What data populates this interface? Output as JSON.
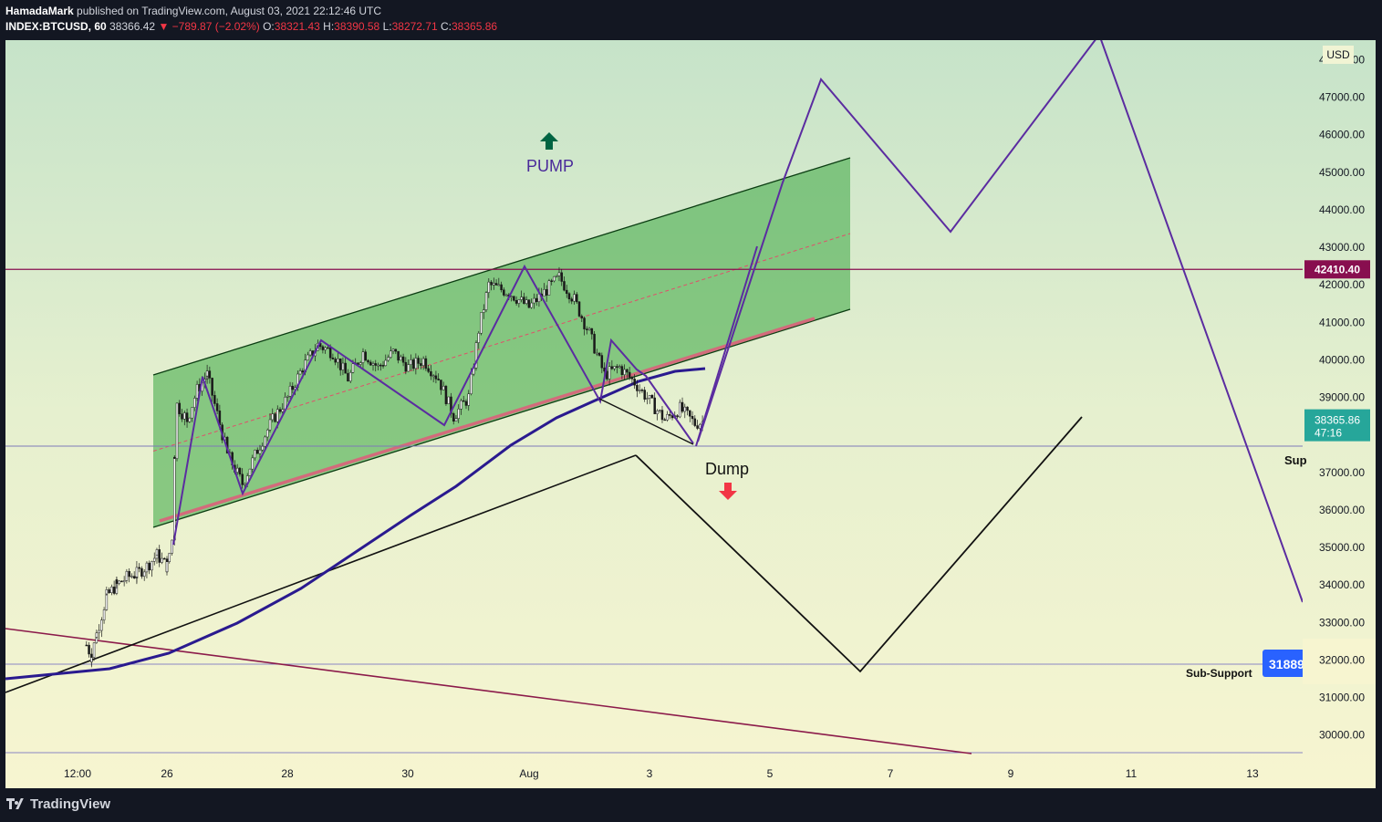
{
  "header": {
    "author": "HamadaMark",
    "published": "published on TradingView.com, August 03, 2021 22:12:46 UTC",
    "symbol": "INDEX:BTCUSD, 60",
    "last": "38366.42",
    "change": "−789.87 (−2.02%)",
    "open_label": "O:",
    "open": "38321.43",
    "high_label": "H:",
    "high": "38390.58",
    "low_label": "L:",
    "low": "38272.71",
    "close_label": "C:",
    "close": "38365.86"
  },
  "price_axis": {
    "currency": "USD",
    "ticks": [
      "48000.00",
      "47000.00",
      "46000.00",
      "45000.00",
      "44000.00",
      "43000.00",
      "42000.00",
      "41000.00",
      "40000.00",
      "39000.00",
      "38000.00",
      "37000.00",
      "36000.00",
      "35000.00",
      "34000.00",
      "33000.00",
      "32000.00",
      "31000.00",
      "30000.00"
    ],
    "hline_label": "42410.40",
    "hline_color": "#880e4f",
    "current_price": "38365.86",
    "countdown": "47:16",
    "current_color": "#26a69a",
    "sub_support_label": "31889",
    "sub_support_color": "#2962ff"
  },
  "time_axis": {
    "ticks": [
      "12:00",
      "26",
      "28",
      "30",
      "Aug",
      "3",
      "5",
      "7",
      "9",
      "11",
      "13"
    ]
  },
  "annotations": {
    "pump": "PUMP",
    "dump": "Dump",
    "support": "Sup",
    "sub_support": "Sub-Support"
  },
  "colors": {
    "pump_arrow": "#006442",
    "dump_arrow": "#f23645",
    "channel_fill": "#4caf50",
    "projection": "#5b2ca0",
    "ma": "#2a1a8f",
    "support_line": "#e05a7a"
  },
  "chart_data": {
    "type": "candlestick",
    "symbol": "INDEX:BTCUSD",
    "currency": "USD",
    "ylim": [
      29500,
      48500
    ],
    "x_ticks": [
      "12:00",
      "26",
      "28",
      "30",
      "Aug",
      "3",
      "5",
      "7",
      "9",
      "11",
      "13"
    ],
    "price_path": [
      [
        "24 16:00",
        32400
      ],
      [
        "24 18:00",
        32100
      ],
      [
        "24 20:00",
        32700
      ],
      [
        "25 00:00",
        33700
      ],
      [
        "25 04:00",
        34000
      ],
      [
        "25 08:00",
        34200
      ],
      [
        "25 12:00",
        34300
      ],
      [
        "25 16:00",
        34500
      ],
      [
        "25 20:00",
        34800
      ],
      [
        "26 00:00",
        34500
      ],
      [
        "26 02:00",
        35200
      ],
      [
        "26 03:00",
        37500
      ],
      [
        "26 04:00",
        38800
      ],
      [
        "26 08:00",
        38400
      ],
      [
        "26 12:00",
        39200
      ],
      [
        "26 16:00",
        39600
      ],
      [
        "27 00:00",
        37500
      ],
      [
        "27 06:00",
        36700
      ],
      [
        "27 12:00",
        37600
      ],
      [
        "27 18:00",
        38400
      ],
      [
        "28 00:00",
        39000
      ],
      [
        "28 06:00",
        39800
      ],
      [
        "28 12:00",
        40400
      ],
      [
        "28 18:00",
        40200
      ],
      [
        "29 00:00",
        39500
      ],
      [
        "29 06:00",
        40200
      ],
      [
        "29 12:00",
        39800
      ],
      [
        "29 18:00",
        40200
      ],
      [
        "30 00:00",
        39800
      ],
      [
        "30 06:00",
        40000
      ],
      [
        "30 12:00",
        39500
      ],
      [
        "30 18:00",
        38500
      ],
      [
        "31 00:00",
        39000
      ],
      [
        "31 04:00",
        40800
      ],
      [
        "31 08:00",
        42000
      ],
      [
        "31 16:00",
        41800
      ],
      [
        "Aug 1 00:00",
        41400
      ],
      [
        "Aug 1 06:00",
        41800
      ],
      [
        "Aug 1 12:00",
        42200
      ],
      [
        "Aug 1 18:00",
        41600
      ],
      [
        "2 00:00",
        40700
      ],
      [
        "2 06:00",
        39600
      ],
      [
        "2 12:00",
        39800
      ],
      [
        "2 18:00",
        39400
      ],
      [
        "3 00:00",
        38900
      ],
      [
        "3 06:00",
        38400
      ],
      [
        "3 12:00",
        38700
      ],
      [
        "3 18:00",
        38300
      ],
      [
        "3 22:00",
        38366
      ]
    ],
    "levels": {
      "resistance": 42410.4,
      "support": 37700,
      "sub_support": 31889,
      "current": 38365.86
    },
    "projection_path": [
      [
        "2 00:00",
        39000
      ],
      [
        "4 00:00",
        38200
      ],
      [
        "4 12:00",
        43000
      ],
      [
        "5 12:00",
        47600
      ],
      [
        "7 12:00",
        43400
      ],
      [
        "10 12:00",
        48800
      ],
      [
        "13 12:00",
        33500
      ]
    ],
    "dump_path": [
      [
        "2 06:00",
        37400
      ],
      [
        "6 00:00",
        31700
      ],
      [
        "10 00:00",
        38700
      ]
    ],
    "channel": {
      "upper": [
        [
          "26 00:00",
          39600
        ],
        [
          "6 00:00",
          45400
        ]
      ],
      "lower": [
        [
          "26 00:00",
          35600
        ],
        [
          "6 00:00",
          41400
        ]
      ]
    }
  }
}
